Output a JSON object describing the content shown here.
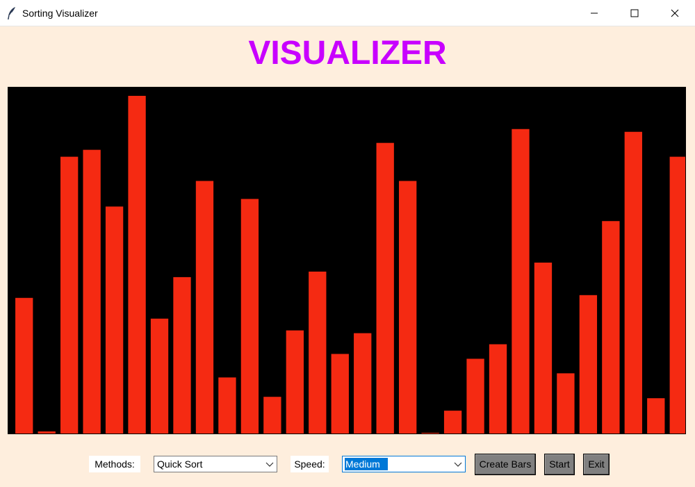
{
  "window": {
    "title": "Sorting Visualizer",
    "icon": "feather-icon"
  },
  "heading": "VISUALIZER",
  "colors": {
    "heading": "#c800ff",
    "background": "#feeedd",
    "canvas": "#000000",
    "bar": "#f52a12",
    "button": "#808080"
  },
  "controls": {
    "methods_label": "Methods:",
    "method_value": "Quick Sort",
    "speed_label": "Speed:",
    "speed_value": "Medium",
    "create_label": "Create Bars",
    "start_label": "Start",
    "exit_label": "Exit"
  },
  "chart_data": {
    "type": "bar",
    "values": [
      196,
      3,
      400,
      410,
      328,
      488,
      166,
      226,
      365,
      81,
      339,
      53,
      149,
      234,
      115,
      145,
      420,
      365,
      1,
      33,
      108,
      129,
      440,
      247,
      87,
      200,
      307,
      436,
      51,
      400
    ],
    "ylim": [
      0,
      500
    ],
    "grid": false
  }
}
